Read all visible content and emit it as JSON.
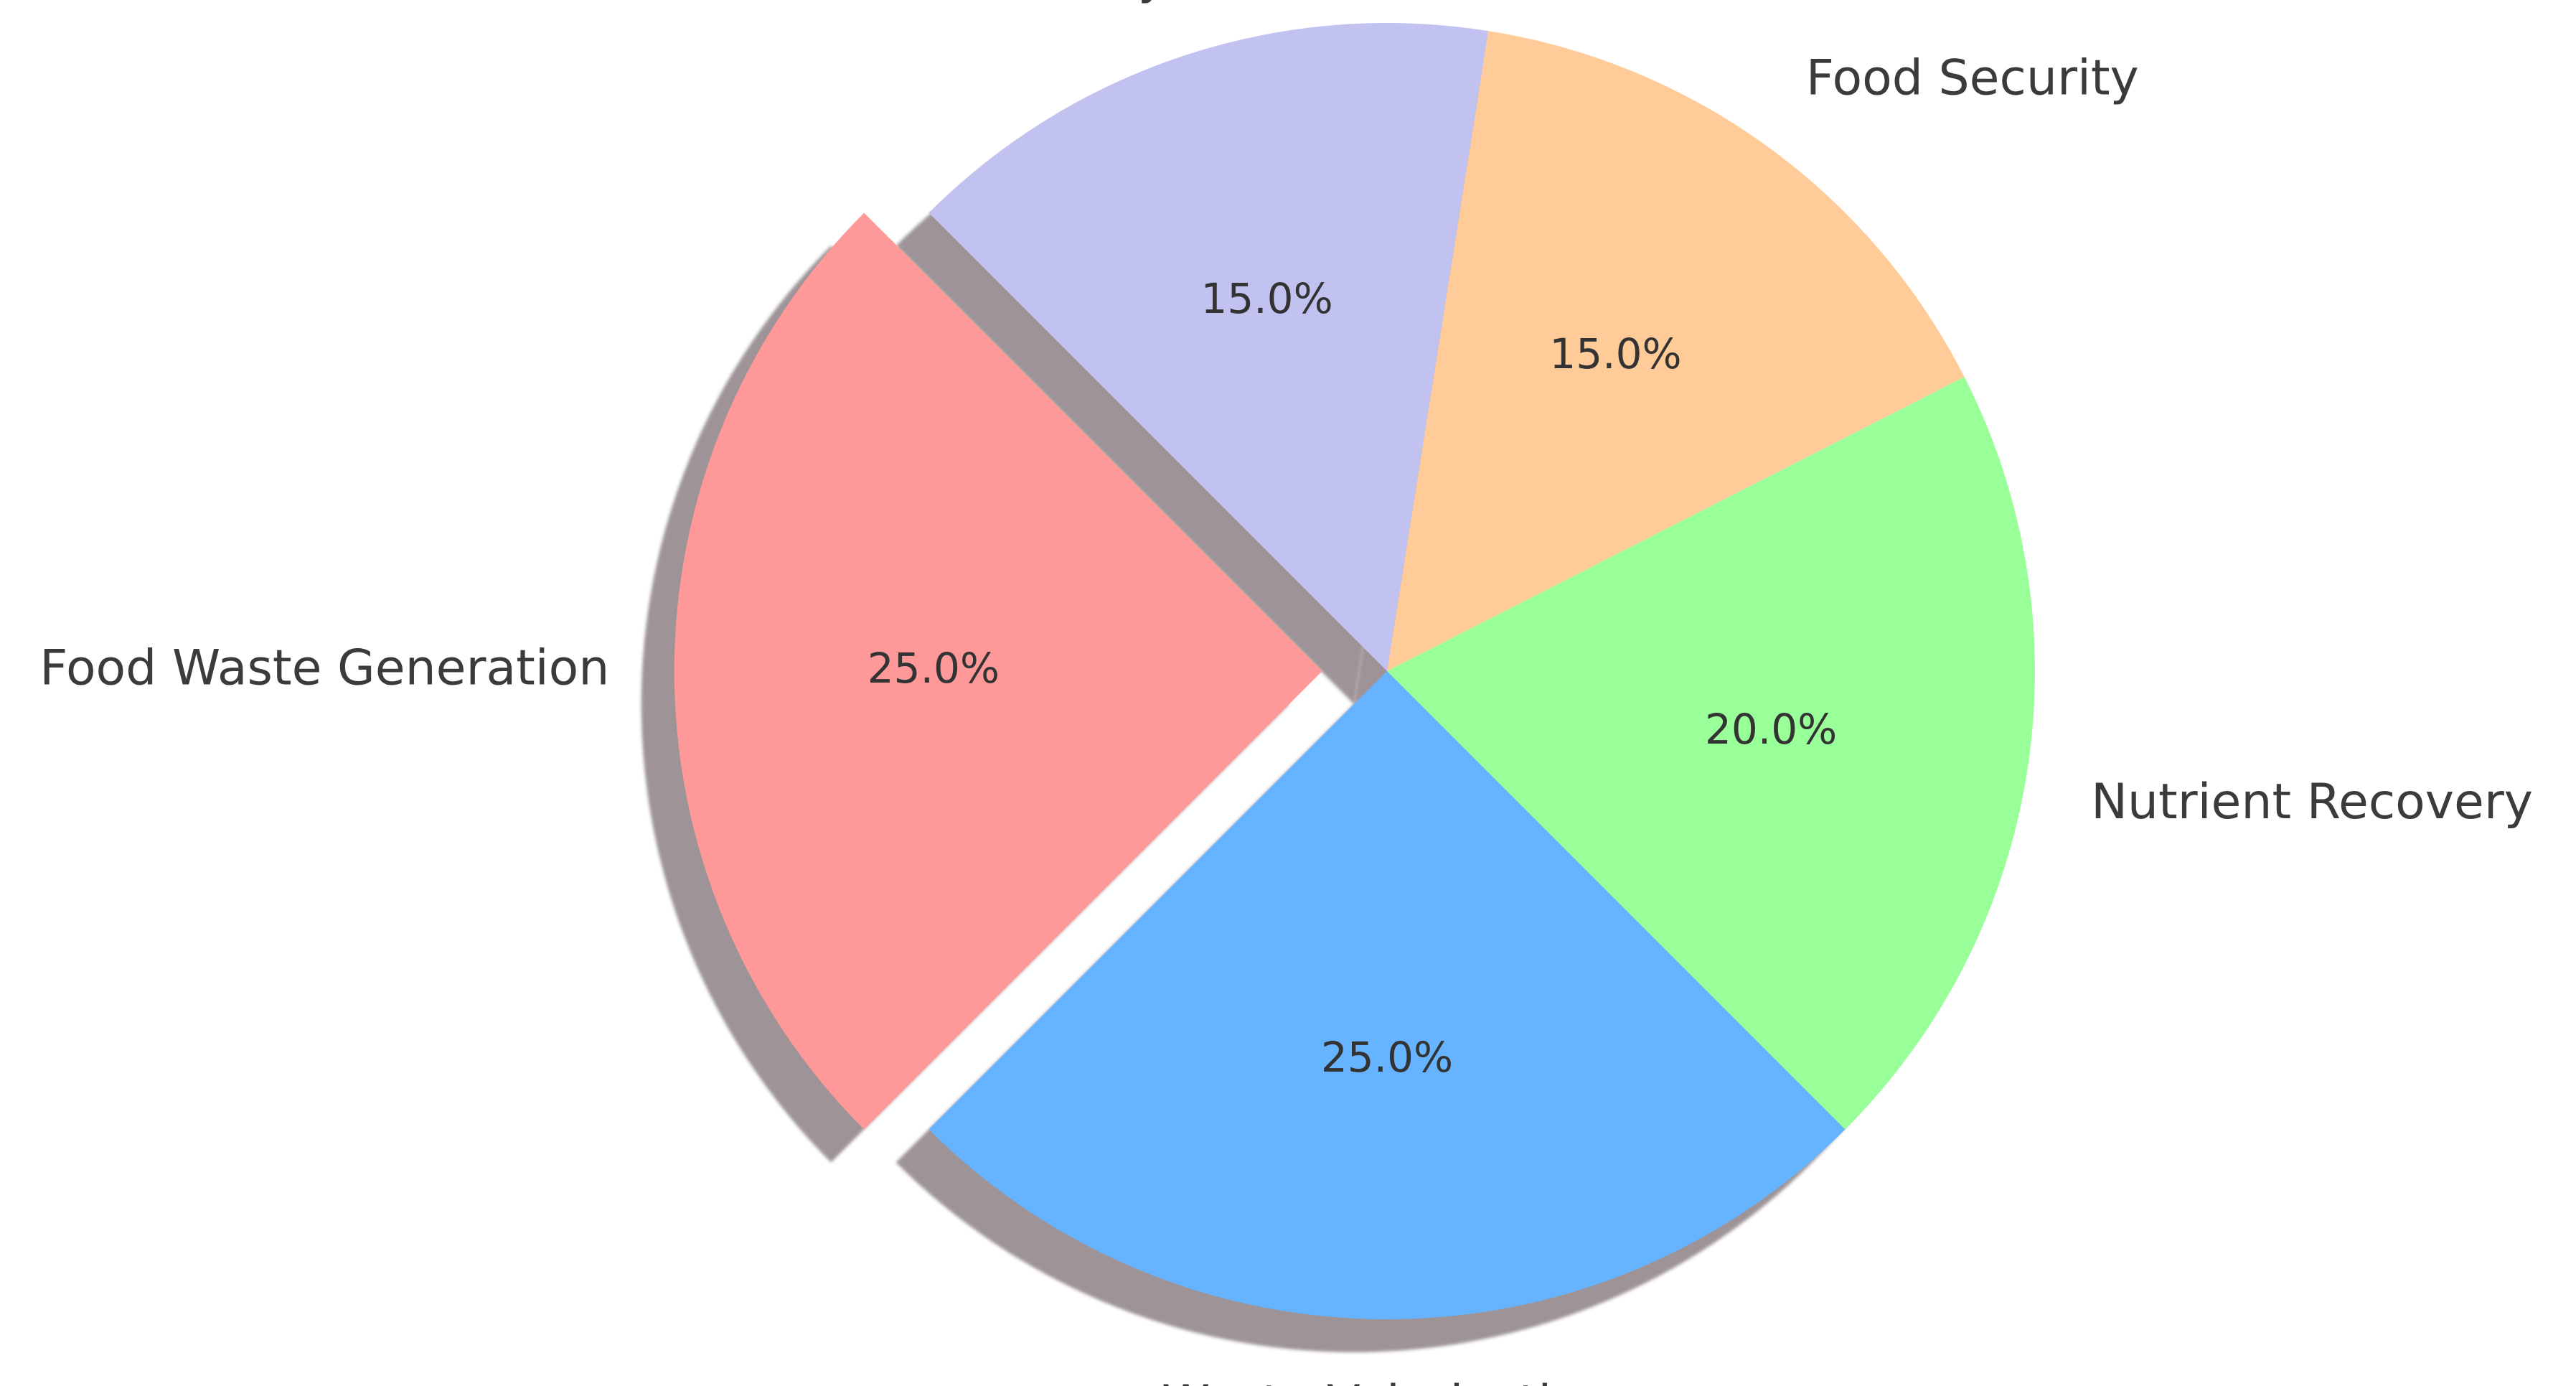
{
  "chart_data": {
    "type": "pie",
    "title": "",
    "start_angle_deg": 135,
    "direction": "counterclockwise",
    "shadow": true,
    "exploded": [
      "Food Waste Generation"
    ],
    "slices": [
      {
        "label": "Food Waste Generation",
        "value": 25.0,
        "pct_label": "25.0%",
        "color": "#ff9999"
      },
      {
        "label": "Waste Valorization",
        "value": 25.0,
        "pct_label": "25.0%",
        "color": "#66b3ff"
      },
      {
        "label": "Nutrient Recovery",
        "value": 20.0,
        "pct_label": "20.0%",
        "color": "#99ff99"
      },
      {
        "label": "Food Security",
        "value": 15.0,
        "pct_label": "15.0%",
        "color": "#ffcc99"
      },
      {
        "label": "Sustainability",
        "value": 15.0,
        "pct_label": "15.0%",
        "color": "#c2c2f0"
      }
    ]
  }
}
